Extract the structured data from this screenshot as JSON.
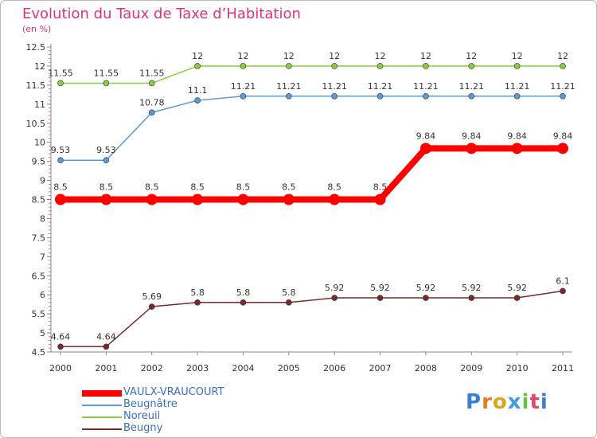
{
  "chart_data": {
    "type": "line",
    "title": "Evolution du Taux de Taxe d’Habitation",
    "subtitle": "(en %)",
    "xlabel": "",
    "ylabel": "(en %)",
    "categories": [
      "2000",
      "2001",
      "2002",
      "2003",
      "2004",
      "2005",
      "2006",
      "2007",
      "2008",
      "2009",
      "2010",
      "2011"
    ],
    "ylim": [
      4.5,
      12.5
    ],
    "yticks": [
      "4.5",
      "5",
      "5.5",
      "6",
      "6.5",
      "7",
      "7.5",
      "8",
      "8.5",
      "9",
      "9.5",
      "10",
      "10.5",
      "11",
      "11.5",
      "12",
      "12.5"
    ],
    "grid": false,
    "legend_position": "bottom-left",
    "series": [
      {
        "name": "VAULX-VRAUCOURT",
        "color": "#ff0000",
        "values": [
          8.5,
          8.5,
          8.5,
          8.5,
          8.5,
          8.5,
          8.5,
          8.5,
          9.84,
          9.84,
          9.84,
          9.84
        ],
        "labels": [
          "8.5",
          "8.5",
          "8.5",
          "8.5",
          "8.5",
          "8.5",
          "8.5",
          "8.5",
          "9.84",
          "9.84",
          "9.84",
          "9.84"
        ]
      },
      {
        "name": "Beugnâtre",
        "color": "#5b9bd5",
        "values": [
          9.53,
          9.53,
          10.78,
          11.1,
          11.21,
          11.21,
          11.21,
          11.21,
          11.21,
          11.21,
          11.21,
          11.21
        ],
        "labels": [
          "9.53",
          "9.53",
          "10.78",
          "11.1",
          "11.21",
          "11.21",
          "11.21",
          "11.21",
          "11.21",
          "11.21",
          "11.21",
          "11.21"
        ]
      },
      {
        "name": "Noreuil",
        "color": "#88cc44",
        "values": [
          11.55,
          11.55,
          11.55,
          12,
          12,
          12,
          12,
          12,
          12,
          12,
          12,
          12
        ],
        "labels": [
          "11.55",
          "11.55",
          "11.55",
          "12",
          "12",
          "12",
          "12",
          "12",
          "12",
          "12",
          "12",
          "12"
        ]
      },
      {
        "name": "Beugny",
        "color": "#7a2a2a",
        "values": [
          4.64,
          4.64,
          5.69,
          5.8,
          5.8,
          5.8,
          5.92,
          5.92,
          5.92,
          5.92,
          5.92,
          6.1
        ],
        "labels": [
          "4.64",
          "4.64",
          "5.69",
          "5.8",
          "5.8",
          "5.8",
          "5.92",
          "5.92",
          "5.92",
          "5.92",
          "5.92",
          "6.1"
        ]
      }
    ]
  },
  "logo": {
    "letters": [
      "P",
      "r",
      "o",
      "x",
      "i",
      "t",
      "i"
    ],
    "colors": [
      "#3a7fd5",
      "#e87a1a",
      "#e0a020",
      "#3a9fe0",
      "#6cbf3a",
      "#e04a6a",
      "#3a7fd5"
    ]
  }
}
